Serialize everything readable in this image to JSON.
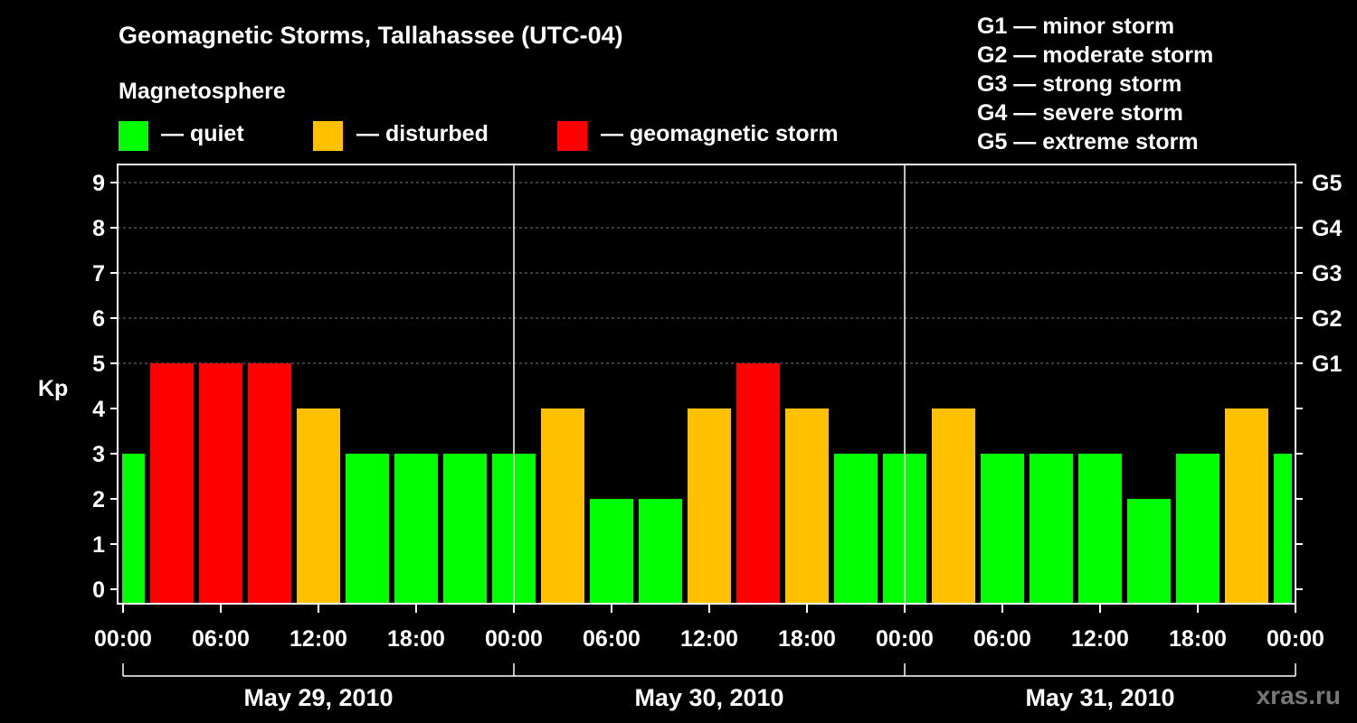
{
  "chart_data": {
    "type": "bar",
    "title": "Geomagnetic Storms, Tallahassee (UTC-04)",
    "ylabel": "Kp",
    "ylim": [
      0,
      9
    ],
    "yticks": [
      "0",
      "1",
      "2",
      "3",
      "4",
      "5",
      "6",
      "7",
      "8",
      "9"
    ],
    "right_ticks": [
      {
        "kp": 5,
        "label": "G1"
      },
      {
        "kp": 6,
        "label": "G2"
      },
      {
        "kp": 7,
        "label": "G3"
      },
      {
        "kp": 8,
        "label": "G4"
      },
      {
        "kp": 9,
        "label": "G5"
      }
    ],
    "xticks": [
      "00:00",
      "06:00",
      "12:00",
      "18:00",
      "00:00",
      "06:00",
      "12:00",
      "18:00",
      "00:00",
      "06:00",
      "12:00",
      "18:00",
      "00:00"
    ],
    "days": [
      "May 29, 2010",
      "May 30, 2010",
      "May 31, 2010"
    ],
    "values": [
      3,
      5,
      5,
      5,
      4,
      3,
      3,
      3,
      3,
      4,
      2,
      2,
      4,
      5,
      4,
      3,
      3,
      4,
      3,
      3,
      3,
      2,
      3,
      4,
      3
    ],
    "colors": {
      "quiet": "#00ff00",
      "disturbed": "#ffc000",
      "storm": "#ff0000"
    },
    "grid": true
  },
  "legend": {
    "heading": "Magnetosphere",
    "items": [
      {
        "label": "— quiet",
        "color": "#00ff00"
      },
      {
        "label": "— disturbed",
        "color": "#ffc000"
      },
      {
        "label": "— geomagnetic storm",
        "color": "#ff0000"
      }
    ]
  },
  "storm_scale": [
    "G1 — minor storm",
    "G2 — moderate storm",
    "G3 — strong storm",
    "G4 — severe storm",
    "G5 — extreme storm"
  ],
  "watermark": "xras.ru"
}
